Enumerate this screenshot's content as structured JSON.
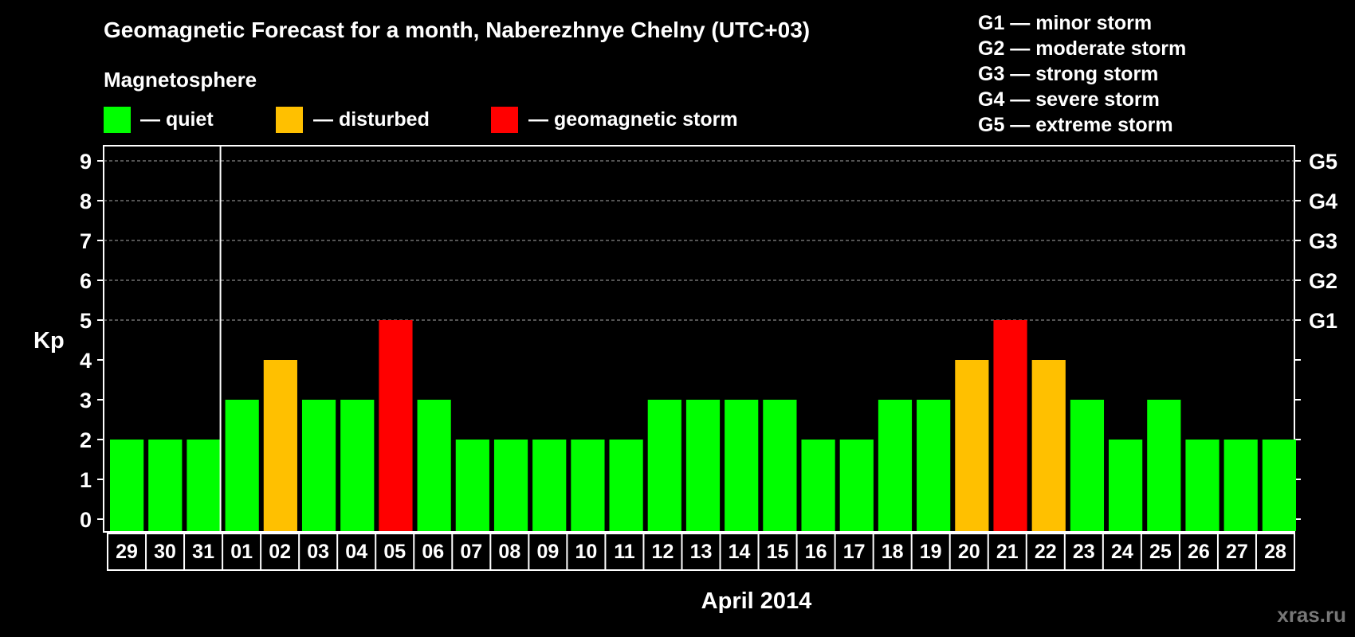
{
  "chart_data": {
    "type": "bar",
    "title": "Geomagnetic Forecast for a month, Naberezhnye Chelny (UTC+03)",
    "legend_title": "Magnetosphere",
    "legend": [
      {
        "label": "— quiet",
        "color": "#00ff00"
      },
      {
        "label": "— disturbed",
        "color": "#ffc000"
      },
      {
        "label": "— geomagnetic storm",
        "color": "#ff0000"
      }
    ],
    "storm_scale": [
      "G1 — minor storm",
      "G2 — moderate storm",
      "G3 — strong storm",
      "G4 — severe storm",
      "G5 — extreme storm"
    ],
    "ylabel": "Kp",
    "xlabel": "April 2014",
    "ylim": [
      0,
      9
    ],
    "yticks": [
      "0",
      "1",
      "2",
      "3",
      "4",
      "5",
      "6",
      "7",
      "8",
      "9"
    ],
    "g_ticks": [
      {
        "kp": 5,
        "label": "G1"
      },
      {
        "kp": 6,
        "label": "G2"
      },
      {
        "kp": 7,
        "label": "G3"
      },
      {
        "kp": 8,
        "label": "G4"
      },
      {
        "kp": 9,
        "label": "G5"
      }
    ],
    "grid": "dashed horizontal at Kp 5–9",
    "categories": [
      "29",
      "30",
      "31",
      "01",
      "02",
      "03",
      "04",
      "05",
      "06",
      "07",
      "08",
      "09",
      "10",
      "11",
      "12",
      "13",
      "14",
      "15",
      "16",
      "17",
      "18",
      "19",
      "20",
      "21",
      "22",
      "23",
      "24",
      "25",
      "26",
      "27",
      "28"
    ],
    "values": [
      2,
      2,
      2,
      3,
      4,
      3,
      3,
      5,
      3,
      2,
      2,
      2,
      2,
      2,
      3,
      3,
      3,
      3,
      2,
      2,
      3,
      3,
      4,
      5,
      4,
      3,
      2,
      3,
      2,
      2,
      2
    ],
    "month_boundary_after": "31",
    "colors": {
      "quiet": "#00ff00",
      "disturbed": "#ffc000",
      "storm": "#ff0000"
    }
  },
  "watermark": "xras.ru"
}
